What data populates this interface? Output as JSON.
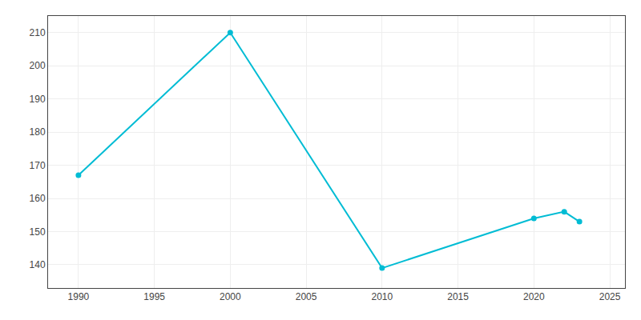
{
  "chart_data": {
    "type": "line",
    "x": [
      1990,
      2000,
      2010,
      2020,
      2022,
      2023
    ],
    "values": [
      167,
      210,
      139,
      154,
      156,
      153
    ],
    "color": "#00bcd4",
    "marker": "circle",
    "xlim": [
      1988,
      2026
    ],
    "ylim": [
      133,
      215
    ],
    "xticks": [
      1990,
      1995,
      2000,
      2005,
      2010,
      2015,
      2020,
      2025
    ],
    "yticks": [
      140,
      150,
      160,
      170,
      180,
      190,
      200,
      210
    ],
    "grid": true
  }
}
